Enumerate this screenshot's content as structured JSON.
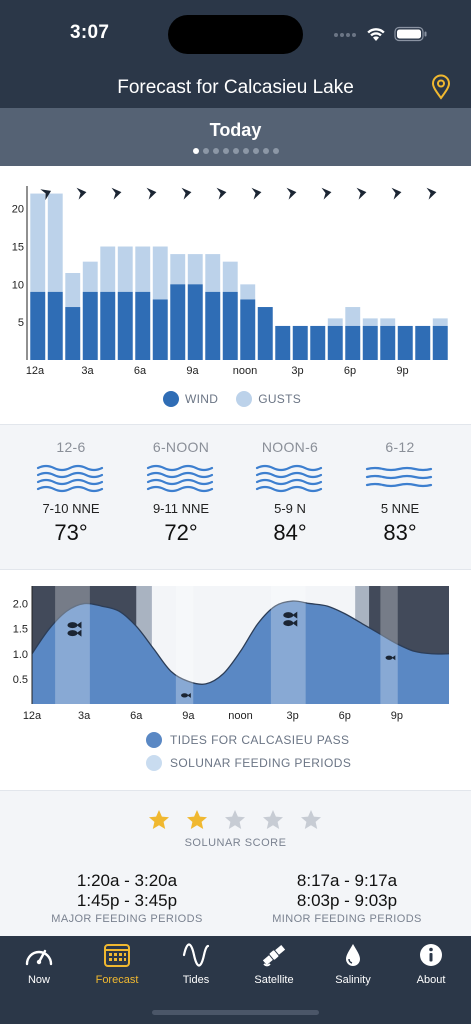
{
  "status_bar": {
    "time": "3:07"
  },
  "header": {
    "title": "Forecast for Calcasieu Lake",
    "location_icon": "location-pin-icon"
  },
  "day": {
    "label": "Today",
    "page_count": 9,
    "active_page": 0
  },
  "chart_data": [
    {
      "type": "bar",
      "title": "",
      "categories": [
        "12a",
        "1a",
        "2a",
        "3a",
        "4a",
        "5a",
        "6a",
        "7a",
        "8a",
        "9a",
        "10a",
        "11a",
        "noon",
        "1p",
        "2p",
        "3p",
        "4p",
        "5p",
        "6p",
        "7p",
        "8p",
        "9p",
        "10p",
        "11p"
      ],
      "x_tick_labels": [
        "12a",
        "3a",
        "6a",
        "9a",
        "noon",
        "3p",
        "6p",
        "9p"
      ],
      "series": [
        {
          "name": "WIND",
          "color": "#2f6db5",
          "values": [
            9,
            9,
            7,
            9,
            9,
            9,
            9,
            8,
            10,
            10,
            9,
            9,
            8,
            7,
            4.5,
            4.5,
            4.5,
            4.5,
            4.5,
            4.5,
            4.5,
            4.5,
            4.5,
            4.5
          ]
        },
        {
          "name": "GUSTS",
          "color": "#bcd2ea",
          "values": [
            22,
            22,
            11.5,
            13,
            15,
            15,
            15,
            15,
            14,
            14,
            14,
            13,
            10,
            7,
            4.5,
            4.5,
            4.5,
            5.5,
            7,
            5.5,
            5.5,
            4.5,
            4.5,
            5.5
          ]
        }
      ],
      "direction_indicators": 12,
      "yticks": [
        5,
        10,
        15,
        20
      ],
      "ylim": [
        0,
        23
      ],
      "legend": {
        "position": "bottom-center",
        "wind_label": "WIND",
        "gusts_label": "GUSTS"
      }
    },
    {
      "type": "area",
      "title": "",
      "x_tick_labels": [
        "12a",
        "3a",
        "6a",
        "9a",
        "noon",
        "3p",
        "6p",
        "9p"
      ],
      "yticks": [
        "0.5",
        "1.0",
        "1.5",
        "2.0"
      ],
      "ylim": [
        0,
        2.35
      ],
      "x_hours": [
        0,
        1,
        2,
        3,
        4,
        5,
        6,
        7,
        8,
        9,
        10,
        11,
        12,
        13,
        14,
        15,
        16,
        17,
        18,
        19,
        20,
        21,
        22,
        23,
        24
      ],
      "tide_values": [
        1.0,
        1.5,
        1.85,
        2.0,
        1.95,
        1.85,
        1.55,
        1.1,
        0.65,
        0.45,
        0.4,
        0.6,
        1.05,
        1.6,
        1.95,
        2.05,
        2.0,
        1.95,
        1.8,
        1.6,
        1.4,
        1.2,
        1.05,
        1.0,
        1.0
      ],
      "feeding_periods_hours": [
        [
          1.33,
          3.33
        ],
        [
          8.28,
          9.28
        ],
        [
          13.75,
          15.75
        ],
        [
          20.05,
          21.05
        ]
      ],
      "night_hours": [
        [
          0,
          6.6
        ],
        [
          19.2,
          24
        ]
      ],
      "twilight_hours": [
        [
          6.0,
          6.9
        ],
        [
          18.6,
          19.4
        ]
      ],
      "legend": {
        "tides_label": "TIDES FOR CALCASIEU PASS",
        "feeding_label": "SOLUNAR FEEDING PERIODS"
      },
      "colors": {
        "tide": "#5a88c4",
        "feeding": "#9bbde3",
        "night": "#424a5a",
        "sky": "#f3f5f8"
      }
    }
  ],
  "periods": [
    {
      "name": "12-6",
      "wind": "7-10 NNE",
      "temp": "73°"
    },
    {
      "name": "6-NOON",
      "wind": "9-11 NNE",
      "temp": "72°"
    },
    {
      "name": "NOON-6",
      "wind": "5-9 N",
      "temp": "84°"
    },
    {
      "name": "6-12",
      "wind": "5 NNE",
      "temp": "83°"
    }
  ],
  "solunar": {
    "score_label": "SOLUNAR SCORE",
    "score": 2,
    "max_score": 5,
    "major": {
      "times": [
        "1:20a - 3:20a",
        "1:45p - 3:45p"
      ],
      "label": "MAJOR FEEDING PERIODS"
    },
    "minor": {
      "times": [
        "8:17a - 9:17a",
        "8:03p - 9:03p"
      ],
      "label": "MINOR FEEDING PERIODS"
    }
  },
  "tabs": [
    {
      "label": "Now",
      "icon": "gauge-icon",
      "active": false
    },
    {
      "label": "Forecast",
      "icon": "calendar-icon",
      "active": true
    },
    {
      "label": "Tides",
      "icon": "sine-wave-icon",
      "active": false
    },
    {
      "label": "Satellite",
      "icon": "satellite-icon",
      "active": false
    },
    {
      "label": "Salinity",
      "icon": "water-drop-icon",
      "active": false
    },
    {
      "label": "About",
      "icon": "info-icon",
      "active": false
    }
  ],
  "colors": {
    "accent": "#f0b830",
    "header": "#2b3748",
    "wind": "#2f6db5",
    "gusts": "#bcd2ea"
  }
}
